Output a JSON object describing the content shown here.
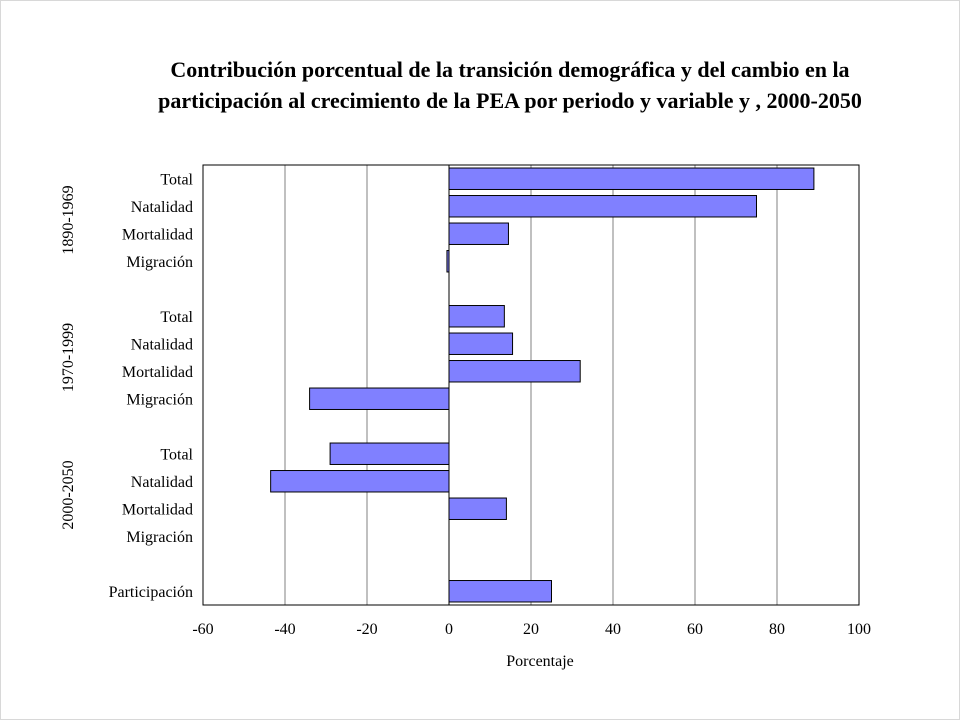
{
  "chart_data": {
    "type": "bar",
    "orientation": "horizontal",
    "title_line1": "Contribución porcentual de la transición demográfica y del cambio en la",
    "title_line2": "participación al crecimiento de la PEA  por periodo y variable y , 2000-2050",
    "xlabel": "Porcentaje",
    "xlim": [
      -60,
      100
    ],
    "xticks": [
      "-60",
      "-40",
      "-20",
      "0",
      "20",
      "40",
      "60",
      "80",
      "100"
    ],
    "grid": "vertical",
    "bar_color": "#8080ff",
    "groups": [
      {
        "label": "1890-1969",
        "categories": [
          "Total",
          "Natalidad",
          "Mortalidad",
          "Migración"
        ],
        "values": [
          89,
          75,
          14.5,
          -0.5
        ]
      },
      {
        "label": "1970-1999",
        "categories": [
          "Total",
          "Natalidad",
          "Mortalidad",
          "Migración"
        ],
        "values": [
          13.5,
          15.5,
          32,
          -34
        ]
      },
      {
        "label": "2000-2050",
        "categories": [
          "Total",
          "Natalidad",
          "Mortalidad",
          "Migración"
        ],
        "values": [
          -29,
          -43.5,
          14,
          0
        ]
      },
      {
        "label": "",
        "categories": [
          "Participación"
        ],
        "values": [
          25
        ]
      }
    ]
  }
}
